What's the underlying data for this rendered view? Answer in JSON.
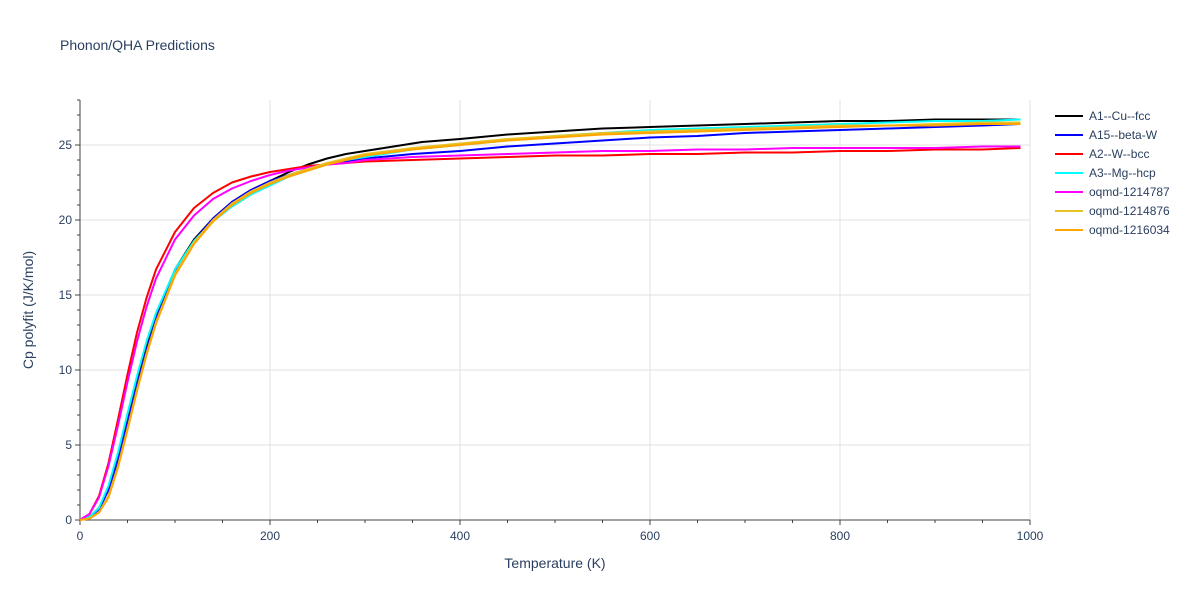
{
  "chart_data": {
    "type": "line",
    "title": "Phonon/QHA Predictions",
    "xlabel": "Temperature (K)",
    "ylabel": "Cp polyfit (J/K/mol)",
    "xlim": [
      0,
      1000
    ],
    "ylim": [
      0,
      28
    ],
    "xticks": [
      0,
      200,
      400,
      600,
      800,
      1000
    ],
    "yticks": [
      0,
      5,
      10,
      15,
      20,
      25
    ],
    "grid": true,
    "legend_position": "right",
    "series": [
      {
        "name": "A1--Cu--fcc",
        "color": "#000000",
        "x": [
          0,
          10,
          20,
          30,
          40,
          50,
          60,
          70,
          80,
          100,
          120,
          140,
          160,
          180,
          200,
          220,
          240,
          260,
          280,
          300,
          320,
          340,
          360,
          400,
          450,
          500,
          550,
          600,
          650,
          700,
          750,
          800,
          850,
          900,
          950,
          990
        ],
        "y": [
          0,
          0.2,
          0.8,
          2.2,
          4.2,
          6.6,
          9.1,
          11.5,
          13.6,
          16.7,
          18.7,
          20.1,
          21.2,
          22.0,
          22.6,
          23.2,
          23.7,
          24.1,
          24.4,
          24.6,
          24.8,
          25.0,
          25.2,
          25.4,
          25.7,
          25.9,
          26.1,
          26.2,
          26.3,
          26.4,
          26.5,
          26.6,
          26.6,
          26.7,
          26.7,
          26.7
        ]
      },
      {
        "name": "A15--beta-W",
        "color": "#0000ff",
        "x": [
          0,
          10,
          20,
          30,
          40,
          50,
          60,
          70,
          80,
          100,
          120,
          140,
          160,
          180,
          200,
          220,
          240,
          260,
          280,
          300,
          350,
          400,
          450,
          500,
          550,
          600,
          650,
          700,
          750,
          800,
          850,
          900,
          950,
          990
        ],
        "y": [
          0,
          0.2,
          0.7,
          2.0,
          4.0,
          6.5,
          9.0,
          11.3,
          13.4,
          16.5,
          18.6,
          20.1,
          21.2,
          22.0,
          22.6,
          23.0,
          23.4,
          23.7,
          23.9,
          24.1,
          24.4,
          24.6,
          24.9,
          25.1,
          25.3,
          25.5,
          25.6,
          25.8,
          25.9,
          26.0,
          26.1,
          26.2,
          26.3,
          26.4
        ]
      },
      {
        "name": "A2--W--bcc",
        "color": "#ff0000",
        "x": [
          0,
          10,
          20,
          30,
          40,
          50,
          60,
          70,
          80,
          100,
          120,
          140,
          160,
          180,
          200,
          220,
          240,
          260,
          280,
          300,
          350,
          400,
          450,
          500,
          550,
          600,
          650,
          700,
          750,
          800,
          850,
          900,
          950,
          990
        ],
        "y": [
          0,
          0.4,
          1.6,
          3.8,
          6.7,
          9.7,
          12.5,
          14.8,
          16.7,
          19.2,
          20.8,
          21.8,
          22.5,
          22.9,
          23.2,
          23.4,
          23.6,
          23.7,
          23.8,
          23.9,
          24.0,
          24.1,
          24.2,
          24.3,
          24.3,
          24.4,
          24.4,
          24.5,
          24.5,
          24.6,
          24.6,
          24.7,
          24.7,
          24.8
        ]
      },
      {
        "name": "A3--Mg--hcp",
        "color": "#00ffff",
        "x": [
          0,
          10,
          20,
          30,
          40,
          50,
          60,
          70,
          80,
          100,
          120,
          140,
          160,
          180,
          200,
          220,
          240,
          260,
          280,
          300,
          350,
          400,
          450,
          500,
          550,
          600,
          650,
          700,
          750,
          800,
          850,
          900,
          950,
          990
        ],
        "y": [
          0,
          0.2,
          0.8,
          2.3,
          4.5,
          7.1,
          9.6,
          11.9,
          13.8,
          16.7,
          18.6,
          19.9,
          20.9,
          21.7,
          22.3,
          22.9,
          23.3,
          23.7,
          24.0,
          24.2,
          24.7,
          25.0,
          25.3,
          25.6,
          25.8,
          26.0,
          26.1,
          26.2,
          26.3,
          26.4,
          26.5,
          26.6,
          26.6,
          26.7
        ]
      },
      {
        "name": "oqmd-1214787",
        "color": "#ff00ff",
        "x": [
          0,
          10,
          20,
          30,
          40,
          50,
          60,
          70,
          80,
          100,
          120,
          140,
          160,
          180,
          200,
          220,
          240,
          260,
          280,
          300,
          350,
          400,
          450,
          500,
          550,
          600,
          650,
          700,
          750,
          800,
          850,
          900,
          950,
          990
        ],
        "y": [
          0,
          0.4,
          1.5,
          3.6,
          6.3,
          9.2,
          11.9,
          14.2,
          16.1,
          18.7,
          20.3,
          21.4,
          22.1,
          22.6,
          23.0,
          23.3,
          23.5,
          23.7,
          23.8,
          24.0,
          24.2,
          24.3,
          24.4,
          24.5,
          24.6,
          24.6,
          24.7,
          24.7,
          24.8,
          24.8,
          24.8,
          24.8,
          24.9,
          24.9
        ]
      },
      {
        "name": "oqmd-1214876",
        "color": "#e6c229",
        "x": [
          0,
          10,
          20,
          30,
          40,
          50,
          60,
          70,
          80,
          100,
          120,
          140,
          160,
          180,
          200,
          220,
          240,
          260,
          280,
          300,
          350,
          400,
          450,
          500,
          550,
          600,
          650,
          700,
          750,
          800,
          850,
          900,
          950,
          990
        ],
        "y": [
          0,
          0.1,
          0.5,
          1.6,
          3.6,
          6.1,
          8.7,
          11.1,
          13.2,
          16.4,
          18.5,
          20.0,
          21.1,
          21.9,
          22.5,
          23.0,
          23.4,
          23.8,
          24.1,
          24.4,
          24.8,
          25.1,
          25.4,
          25.6,
          25.8,
          25.9,
          26.0,
          26.1,
          26.2,
          26.3,
          26.3,
          26.4,
          26.5,
          26.5
        ]
      },
      {
        "name": "oqmd-1216034",
        "color": "#ffa500",
        "x": [
          0,
          10,
          20,
          30,
          40,
          50,
          60,
          70,
          80,
          100,
          120,
          140,
          160,
          180,
          200,
          220,
          240,
          260,
          280,
          300,
          350,
          400,
          450,
          500,
          550,
          600,
          650,
          700,
          750,
          800,
          850,
          900,
          950,
          990
        ],
        "y": [
          0,
          0.1,
          0.5,
          1.5,
          3.5,
          6.0,
          8.6,
          11.0,
          13.1,
          16.3,
          18.4,
          19.9,
          21.0,
          21.8,
          22.4,
          22.9,
          23.3,
          23.7,
          24.0,
          24.3,
          24.7,
          25.0,
          25.3,
          25.5,
          25.7,
          25.8,
          25.9,
          26.0,
          26.1,
          26.2,
          26.3,
          26.3,
          26.4,
          26.4
        ]
      }
    ]
  }
}
